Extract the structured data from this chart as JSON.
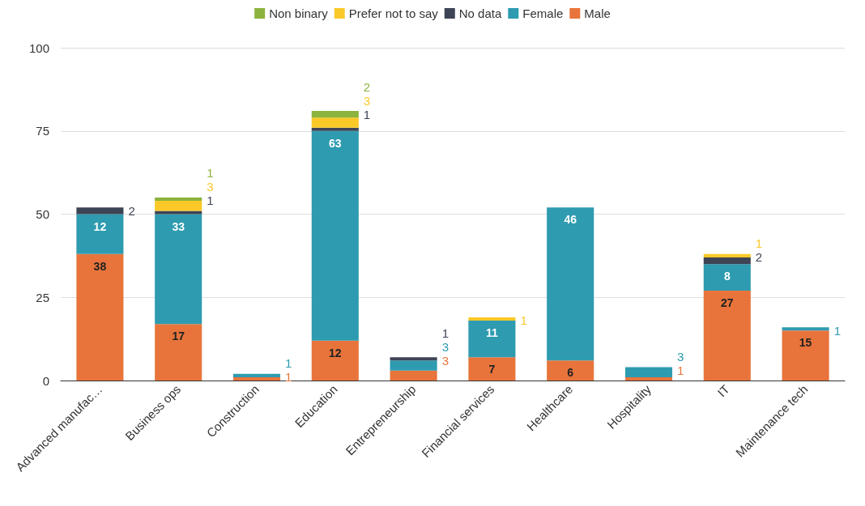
{
  "chart_data": {
    "type": "bar",
    "stacked": true,
    "data_labels": true,
    "grid": "y",
    "legend": "top",
    "categories": [
      "Advanced manufac…",
      "Business ops",
      "Construction",
      "Education",
      "Entrepreneurship",
      "Financial services",
      "Healthcare",
      "Hospitality",
      "IT",
      "Maintenance tech"
    ],
    "ylim": [
      0,
      100
    ],
    "yticks": [
      0,
      25,
      50,
      75,
      100
    ],
    "series": [
      {
        "name": "Male",
        "color": "#e8743b",
        "values": [
          38,
          17,
          1,
          12,
          3,
          7,
          6,
          1,
          27,
          15
        ]
      },
      {
        "name": "Female",
        "color": "#2e9bb0",
        "values": [
          12,
          33,
          1,
          63,
          3,
          11,
          46,
          3,
          8,
          1
        ]
      },
      {
        "name": "No data",
        "color": "#3d4456",
        "values": [
          2,
          1,
          null,
          1,
          1,
          null,
          null,
          null,
          2,
          null
        ]
      },
      {
        "name": "Prefer not to say",
        "color": "#fac928",
        "values": [
          null,
          3,
          null,
          3,
          null,
          1,
          null,
          null,
          1,
          null
        ]
      },
      {
        "name": "Non binary",
        "color": "#8cb33d",
        "values": [
          null,
          1,
          null,
          2,
          null,
          null,
          null,
          null,
          null,
          null
        ]
      }
    ]
  }
}
